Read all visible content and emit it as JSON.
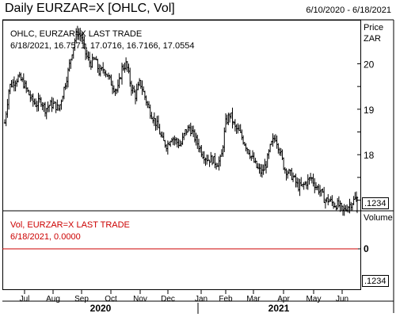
{
  "header": {
    "title": "Daily EURZAR=X [OHLC, Vol]",
    "date_range": "6/10/2020 - 6/18/2021"
  },
  "price_panel": {
    "legend_line1": "OHLC, EURZAR=X LAST TRADE",
    "legend_line2": "6/18/2021, 16.7571, 17.0716, 16.7166, 17.0554",
    "axis_title": "Price",
    "axis_unit": "ZAR",
    "cursor_box": ".1234"
  },
  "volume_panel": {
    "legend_line1": "Vol, EURZAR=X LAST TRADE",
    "legend_line2": "6/18/2021, 0.0000",
    "axis_title": "Volume",
    "zero_label": "0",
    "cursor_box": ".1234"
  },
  "colors": {
    "bars": "#000000",
    "volume": "#cc0000",
    "grid": "#000000"
  },
  "chart_data": [
    {
      "type": "ohlc",
      "title": "Daily EURZAR=X [OHLC, Vol]",
      "x_months": [
        "Jul",
        "Aug",
        "Sep",
        "Oct",
        "Nov",
        "Dec",
        "Jan",
        "Feb",
        "Mar",
        "Apr",
        "May",
        "Jun"
      ],
      "x_years": [
        "2020",
        "2021"
      ],
      "y_ticks": [
        17,
        17.5,
        18,
        18.5,
        19,
        19.5,
        20
      ],
      "ylim": [
        16.8,
        20.95
      ],
      "ylabel": "Price ZAR",
      "last_bar": {
        "date": "6/18/2021",
        "open": 16.7571,
        "high": 17.0716,
        "low": 16.7166,
        "close": 17.0554
      },
      "series_close_approx": [
        18.7,
        19.5,
        19.6,
        19.7,
        19.6,
        19.4,
        19.2,
        19.1,
        19.2,
        19.0,
        19.1,
        19.1,
        19.0,
        19.4,
        19.8,
        20.3,
        20.7,
        20.6,
        20.2,
        20.0,
        20.1,
        19.8,
        19.9,
        19.7,
        19.5,
        19.4,
        19.9,
        20.0,
        19.5,
        19.3,
        19.6,
        19.3,
        19.0,
        18.8,
        18.6,
        18.3,
        18.2,
        18.4,
        18.3,
        18.2,
        18.5,
        18.6,
        18.4,
        18.2,
        18.0,
        17.9,
        17.9,
        17.8,
        17.9,
        18.7,
        18.9,
        18.6,
        18.5,
        18.3,
        18.1,
        17.9,
        17.7,
        17.6,
        17.8,
        18.2,
        18.4,
        18.1,
        17.7,
        17.6,
        17.5,
        17.3,
        17.3,
        17.4,
        17.5,
        17.3,
        17.2,
        17.0,
        17.0,
        16.9,
        16.9,
        16.75,
        16.85,
        16.95,
        17.05
      ]
    },
    {
      "type": "bar",
      "title": "Volume",
      "series_name": "Vol",
      "y_ticks": [
        0
      ],
      "last_value": 0.0,
      "values": [
        0
      ]
    }
  ]
}
